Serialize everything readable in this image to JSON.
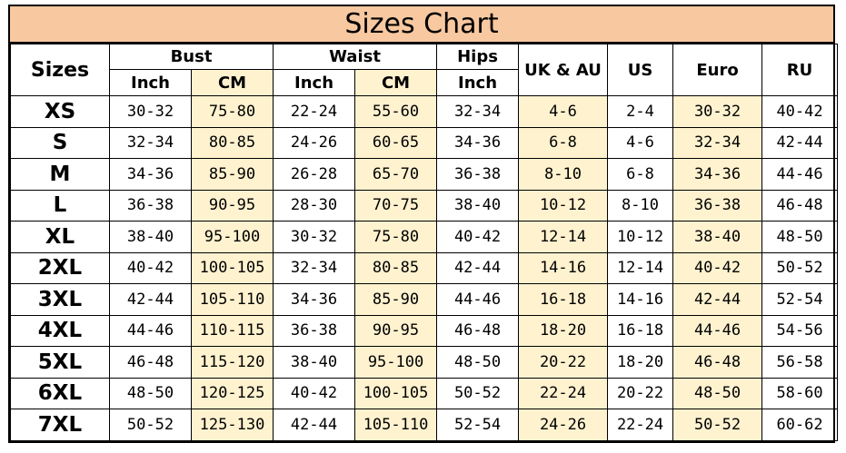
{
  "title": "Sizes Chart",
  "header": {
    "sizes": "Sizes",
    "bust": "Bust",
    "waist": "Waist",
    "hips": "Hips",
    "uk_au": "UK & AU",
    "us": "US",
    "euro": "Euro",
    "ru": "RU",
    "inch": "Inch",
    "cm": "CM"
  },
  "highlight_color": "#fff2cf",
  "title_color": "#f8c8a0",
  "rows": [
    {
      "size": "XS",
      "bust_in": "30-32",
      "bust_cm": "75-80",
      "waist_in": "22-24",
      "waist_cm": "55-60",
      "hips_in": "32-34",
      "uk_au": "4-6",
      "us": "2-4",
      "euro": "30-32",
      "ru": "40-42"
    },
    {
      "size": "S",
      "bust_in": "32-34",
      "bust_cm": "80-85",
      "waist_in": "24-26",
      "waist_cm": "60-65",
      "hips_in": "34-36",
      "uk_au": "6-8",
      "us": "4-6",
      "euro": "32-34",
      "ru": "42-44"
    },
    {
      "size": "M",
      "bust_in": "34-36",
      "bust_cm": "85-90",
      "waist_in": "26-28",
      "waist_cm": "65-70",
      "hips_in": "36-38",
      "uk_au": "8-10",
      "us": "6-8",
      "euro": "34-36",
      "ru": "44-46"
    },
    {
      "size": "L",
      "bust_in": "36-38",
      "bust_cm": "90-95",
      "waist_in": "28-30",
      "waist_cm": "70-75",
      "hips_in": "38-40",
      "uk_au": "10-12",
      "us": "8-10",
      "euro": "36-38",
      "ru": "46-48"
    },
    {
      "size": "XL",
      "bust_in": "38-40",
      "bust_cm": "95-100",
      "waist_in": "30-32",
      "waist_cm": "75-80",
      "hips_in": "40-42",
      "uk_au": "12-14",
      "us": "10-12",
      "euro": "38-40",
      "ru": "48-50"
    },
    {
      "size": "2XL",
      "bust_in": "40-42",
      "bust_cm": "100-105",
      "waist_in": "32-34",
      "waist_cm": "80-85",
      "hips_in": "42-44",
      "uk_au": "14-16",
      "us": "12-14",
      "euro": "40-42",
      "ru": "50-52"
    },
    {
      "size": "3XL",
      "bust_in": "42-44",
      "bust_cm": "105-110",
      "waist_in": "34-36",
      "waist_cm": "85-90",
      "hips_in": "44-46",
      "uk_au": "16-18",
      "us": "14-16",
      "euro": "42-44",
      "ru": "52-54"
    },
    {
      "size": "4XL",
      "bust_in": "44-46",
      "bust_cm": "110-115",
      "waist_in": "36-38",
      "waist_cm": "90-95",
      "hips_in": "46-48",
      "uk_au": "18-20",
      "us": "16-18",
      "euro": "44-46",
      "ru": "54-56"
    },
    {
      "size": "5XL",
      "bust_in": "46-48",
      "bust_cm": "115-120",
      "waist_in": "38-40",
      "waist_cm": "95-100",
      "hips_in": "48-50",
      "uk_au": "20-22",
      "us": "18-20",
      "euro": "46-48",
      "ru": "56-58"
    },
    {
      "size": "6XL",
      "bust_in": "48-50",
      "bust_cm": "120-125",
      "waist_in": "40-42",
      "waist_cm": "100-105",
      "hips_in": "50-52",
      "uk_au": "22-24",
      "us": "20-22",
      "euro": "48-50",
      "ru": "58-60"
    },
    {
      "size": "7XL",
      "bust_in": "50-52",
      "bust_cm": "125-130",
      "waist_in": "42-44",
      "waist_cm": "105-110",
      "hips_in": "52-54",
      "uk_au": "24-26",
      "us": "22-24",
      "euro": "50-52",
      "ru": "60-62"
    }
  ]
}
